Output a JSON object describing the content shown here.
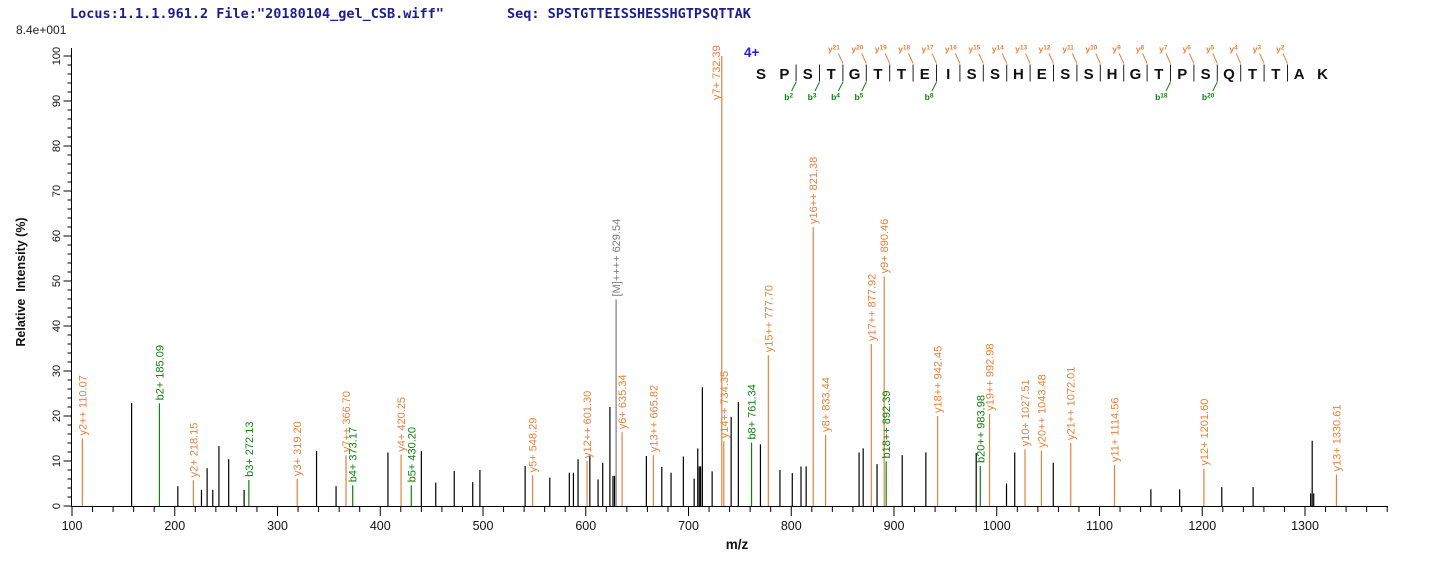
{
  "header": {
    "locus_file": "Locus:1.1.1.961.2 File:\"20180104_gel_CSB.wiff\"",
    "seq_label": "Seq: SPSTGTTEISSHESSHGTPSQTTAK",
    "base_peak_intensity": "8.4e+001"
  },
  "axes": {
    "x_label": "m/z",
    "y_label": "Relative  Intensity (%)",
    "x_min": 100,
    "x_max": 1380,
    "x_major_step": 100,
    "x_minor_step": 20,
    "x_label_max": 1300,
    "y_min": 0,
    "y_max": 100,
    "y_major_step": 10,
    "y_minor_step": 2
  },
  "peptide": {
    "charge": "4+",
    "sequence": "SPSTGTTEISSHESSHGTPSQTTAK",
    "y_ions": [
      21,
      20,
      19,
      18,
      17,
      16,
      15,
      14,
      13,
      12,
      11,
      10,
      9,
      8,
      7,
      6,
      5,
      4,
      3,
      2
    ],
    "b_ions": [
      2,
      3,
      4,
      5,
      8,
      18,
      20
    ]
  },
  "colors": {
    "y": "#E5823E",
    "b": "#0E820E",
    "M": "#7F7F7F",
    "u": "#000000",
    "header": "#1C1C8F",
    "charge": "#2222CC",
    "axis": "#000000"
  },
  "chart_data": {
    "type": "bar",
    "subtype": "ms2-spectrum",
    "title": "",
    "xlabel": "m/z",
    "ylabel": "Relative Intensity (%)",
    "xlim": [
      100,
      1380
    ],
    "ylim": [
      0,
      100
    ],
    "grid": false,
    "peaks": [
      {
        "mz": 110.07,
        "i": 15.0,
        "s": "y",
        "label": "y2++ 110.07"
      },
      {
        "mz": 158.0,
        "i": 22.9,
        "s": "u"
      },
      {
        "mz": 185.09,
        "i": 22.8,
        "s": "b",
        "label": "b2+ 185.09"
      },
      {
        "mz": 203.0,
        "i": 4.4,
        "s": "u"
      },
      {
        "mz": 218.15,
        "i": 5.7,
        "s": "y",
        "label": "y2+ 218.15"
      },
      {
        "mz": 226.0,
        "i": 3.6,
        "s": "u"
      },
      {
        "mz": 231.5,
        "i": 8.4,
        "s": "u"
      },
      {
        "mz": 237.0,
        "i": 3.6,
        "s": "u"
      },
      {
        "mz": 243.0,
        "i": 13.3,
        "s": "u"
      },
      {
        "mz": 252.5,
        "i": 10.4,
        "s": "u"
      },
      {
        "mz": 267.5,
        "i": 3.6,
        "s": "u"
      },
      {
        "mz": 272.13,
        "i": 5.8,
        "s": "b",
        "label": "b3+ 272.13"
      },
      {
        "mz": 319.2,
        "i": 6.0,
        "s": "y",
        "label": "y3+ 319.20"
      },
      {
        "mz": 338.0,
        "i": 12.2,
        "s": "u"
      },
      {
        "mz": 357.0,
        "i": 4.4,
        "s": "u"
      },
      {
        "mz": 366.7,
        "i": 11.3,
        "s": "y",
        "label": "y7++ 366.70"
      },
      {
        "mz": 373.17,
        "i": 4.6,
        "s": "b",
        "label": "b4+ 373.17"
      },
      {
        "mz": 407.5,
        "i": 11.9,
        "s": "u"
      },
      {
        "mz": 420.25,
        "i": 11.4,
        "s": "y",
        "label": "y4+ 420.25"
      },
      {
        "mz": 430.2,
        "i": 4.6,
        "s": "b",
        "label": "b5+ 430.20"
      },
      {
        "mz": 440.0,
        "i": 12.2,
        "s": "u"
      },
      {
        "mz": 454.0,
        "i": 5.2,
        "s": "u"
      },
      {
        "mz": 472.0,
        "i": 7.8,
        "s": "u"
      },
      {
        "mz": 490.0,
        "i": 5.3,
        "s": "u"
      },
      {
        "mz": 497.0,
        "i": 8.0,
        "s": "u"
      },
      {
        "mz": 541.0,
        "i": 8.9,
        "s": "u"
      },
      {
        "mz": 548.29,
        "i": 6.8,
        "s": "y",
        "label": "y5+ 548.29"
      },
      {
        "mz": 565.0,
        "i": 6.3,
        "s": "u"
      },
      {
        "mz": 584.0,
        "i": 7.4,
        "s": "u"
      },
      {
        "mz": 588.0,
        "i": 7.4,
        "s": "u"
      },
      {
        "mz": 592.5,
        "i": 10.4,
        "s": "u"
      },
      {
        "mz": 601.3,
        "i": 10.0,
        "s": "y",
        "label": "y12++ 601.30"
      },
      {
        "mz": 604.0,
        "i": 11.1,
        "s": "u"
      },
      {
        "mz": 612.0,
        "i": 5.9,
        "s": "u"
      },
      {
        "mz": 616.5,
        "i": 9.6,
        "s": "u"
      },
      {
        "mz": 623.5,
        "i": 22.0,
        "s": "u"
      },
      {
        "mz": 626.5,
        "i": 6.7,
        "s": "u"
      },
      {
        "mz": 628.0,
        "i": 6.7,
        "s": "u"
      },
      {
        "mz": 629.54,
        "i": 45.9,
        "s": "M",
        "label": "[M]++++ 629.54"
      },
      {
        "mz": 635.34,
        "i": 16.4,
        "s": "y",
        "label": "y6+ 635.34"
      },
      {
        "mz": 659.0,
        "i": 11.1,
        "s": "u"
      },
      {
        "mz": 665.82,
        "i": 11.3,
        "s": "y",
        "label": "y13++ 665.82"
      },
      {
        "mz": 674.0,
        "i": 8.7,
        "s": "u"
      },
      {
        "mz": 683.0,
        "i": 7.4,
        "s": "u"
      },
      {
        "mz": 695.0,
        "i": 11.0,
        "s": "u"
      },
      {
        "mz": 705.5,
        "i": 6.1,
        "s": "u"
      },
      {
        "mz": 709.0,
        "i": 12.8,
        "s": "u"
      },
      {
        "mz": 710.5,
        "i": 8.8,
        "s": "u"
      },
      {
        "mz": 711.8,
        "i": 8.8,
        "s": "u"
      },
      {
        "mz": 713.5,
        "i": 26.4,
        "s": "u"
      },
      {
        "mz": 723.0,
        "i": 7.7,
        "s": "u"
      },
      {
        "mz": 732.39,
        "i": 100.0,
        "s": "y",
        "label": "y7+ 732.39"
      },
      {
        "mz": 734.35,
        "i": 14.4,
        "s": "y",
        "label": "y14++ 734.35"
      },
      {
        "mz": 741.5,
        "i": 19.8,
        "s": "u"
      },
      {
        "mz": 748.5,
        "i": 23.1,
        "s": "u"
      },
      {
        "mz": 761.34,
        "i": 14.1,
        "s": "b",
        "label": "b8+ 761.34"
      },
      {
        "mz": 770.0,
        "i": 13.7,
        "s": "u"
      },
      {
        "mz": 777.7,
        "i": 33.5,
        "s": "y",
        "label": "y15++ 777.70"
      },
      {
        "mz": 789.0,
        "i": 8.0,
        "s": "u"
      },
      {
        "mz": 801.0,
        "i": 7.3,
        "s": "u"
      },
      {
        "mz": 809.5,
        "i": 8.8,
        "s": "u"
      },
      {
        "mz": 814.5,
        "i": 8.8,
        "s": "u"
      },
      {
        "mz": 821.38,
        "i": 62.0,
        "s": "y",
        "label": "y16++ 821.38"
      },
      {
        "mz": 833.44,
        "i": 15.8,
        "s": "y",
        "label": "y8+ 833.44"
      },
      {
        "mz": 866.0,
        "i": 11.9,
        "s": "u"
      },
      {
        "mz": 870.0,
        "i": 12.8,
        "s": "u"
      },
      {
        "mz": 877.92,
        "i": 36.0,
        "s": "y",
        "label": "y17++ 877.92"
      },
      {
        "mz": 883.5,
        "i": 9.3,
        "s": "u"
      },
      {
        "mz": 890.46,
        "i": 51.0,
        "s": "y",
        "label": "y9+ 890.46"
      },
      {
        "mz": 892.39,
        "i": 9.9,
        "s": "b",
        "label": "b18++ 892.39"
      },
      {
        "mz": 908.0,
        "i": 11.3,
        "s": "u"
      },
      {
        "mz": 931.0,
        "i": 11.9,
        "s": "u"
      },
      {
        "mz": 942.45,
        "i": 20.0,
        "s": "y",
        "label": "y18++ 942.45"
      },
      {
        "mz": 980.0,
        "i": 11.8,
        "s": "u"
      },
      {
        "mz": 983.98,
        "i": 8.9,
        "s": "b",
        "label": "b20++ 983.98"
      },
      {
        "mz": 992.98,
        "i": 20.5,
        "s": "y",
        "label": "y19++ 992.98"
      },
      {
        "mz": 1009.5,
        "i": 5.0,
        "s": "u"
      },
      {
        "mz": 1017.5,
        "i": 11.9,
        "s": "u"
      },
      {
        "mz": 1027.51,
        "i": 12.6,
        "s": "y",
        "label": "y10+ 1027.51"
      },
      {
        "mz": 1043.48,
        "i": 12.3,
        "s": "y",
        "label": "y20++ 1043.48"
      },
      {
        "mz": 1055.0,
        "i": 9.6,
        "s": "u"
      },
      {
        "mz": 1072.01,
        "i": 14.0,
        "s": "y",
        "label": "y21++ 1072.01"
      },
      {
        "mz": 1114.56,
        "i": 9.1,
        "s": "y",
        "label": "y11+ 1114.56"
      },
      {
        "mz": 1150.0,
        "i": 3.7,
        "s": "u"
      },
      {
        "mz": 1178.0,
        "i": 3.7,
        "s": "u"
      },
      {
        "mz": 1201.6,
        "i": 8.3,
        "s": "y",
        "label": "y12+ 1201.60"
      },
      {
        "mz": 1219.0,
        "i": 4.2,
        "s": "u"
      },
      {
        "mz": 1249.5,
        "i": 4.2,
        "s": "u"
      },
      {
        "mz": 1305.5,
        "i": 2.8,
        "s": "u"
      },
      {
        "mz": 1307.0,
        "i": 14.5,
        "s": "u"
      },
      {
        "mz": 1308.5,
        "i": 2.8,
        "s": "u"
      },
      {
        "mz": 1330.61,
        "i": 7.0,
        "s": "y",
        "label": "y13+ 1330.61"
      }
    ]
  }
}
